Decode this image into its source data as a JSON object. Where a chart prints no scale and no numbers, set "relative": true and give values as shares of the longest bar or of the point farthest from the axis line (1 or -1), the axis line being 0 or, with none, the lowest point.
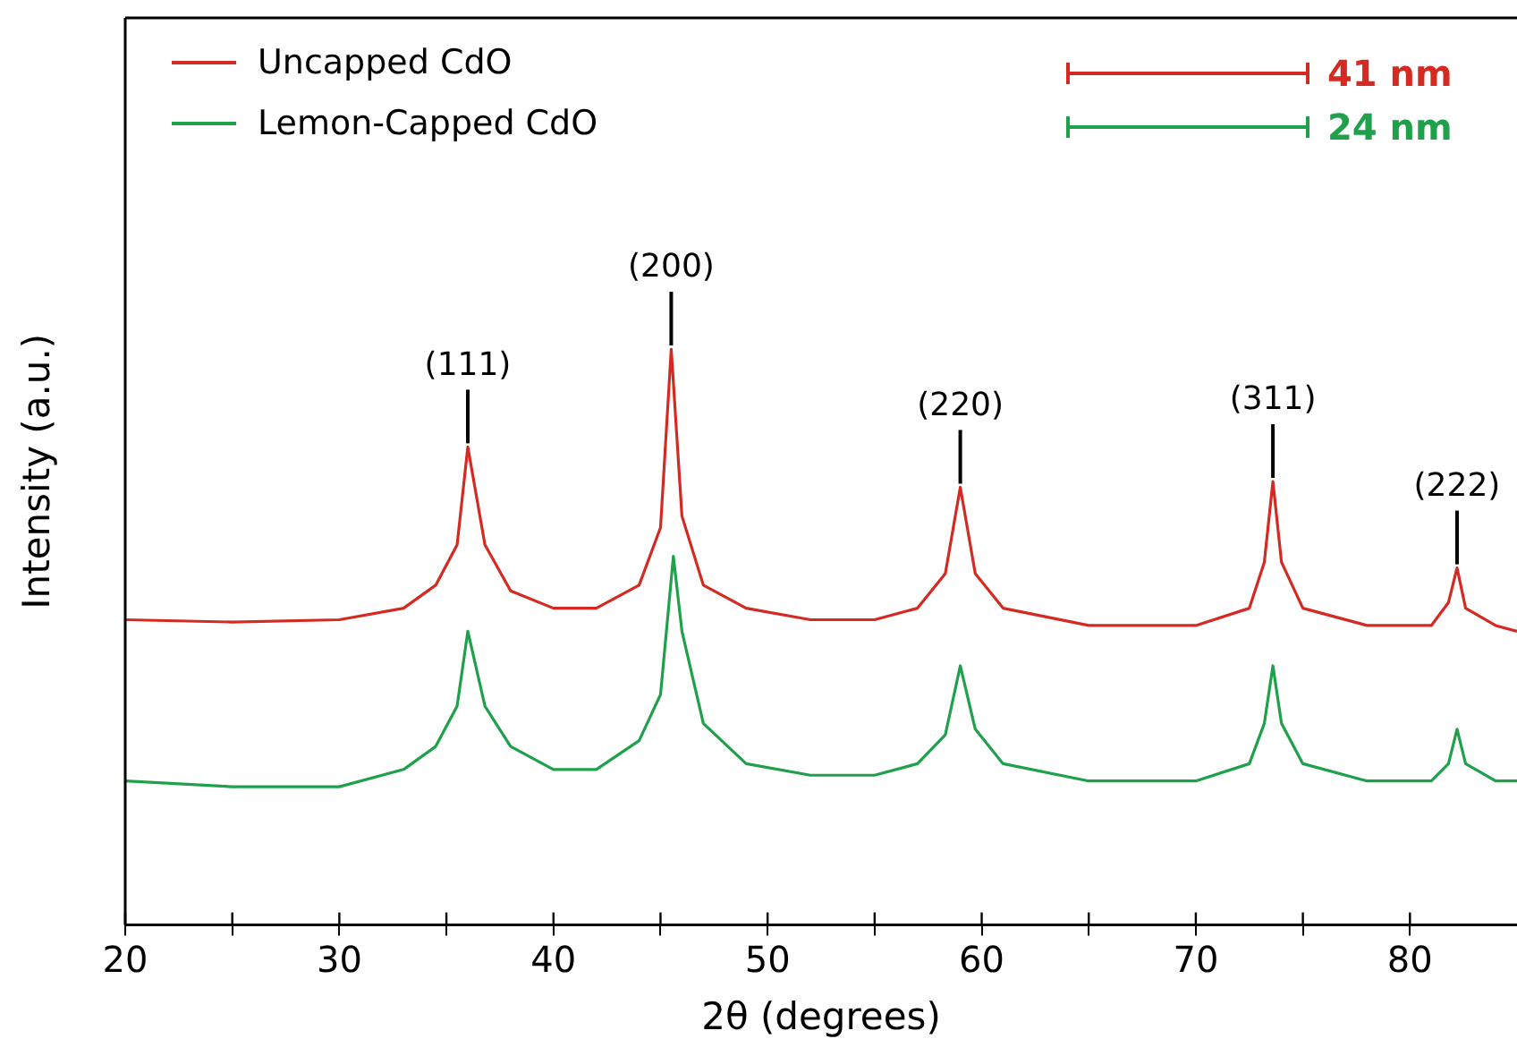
{
  "chart_data": {
    "type": "line",
    "xlabel": "2θ (degrees)",
    "ylabel": "Intensity (a.u.)",
    "relative": true,
    "xlim": [
      20,
      85
    ],
    "xticks": [
      20,
      {
        "value": 25,
        "label": null
      },
      30,
      {
        "value": 35,
        "label": null
      },
      40,
      {
        "value": 45,
        "label": null
      },
      50,
      {
        "value": 55,
        "label": null
      },
      60,
      {
        "value": 65,
        "label": null
      },
      70,
      {
        "value": 75,
        "label": null
      },
      80
    ],
    "grid": false,
    "legend": "top left",
    "marker": "none",
    "line_style": "solid",
    "series": [
      {
        "name": "Uncapped CdO",
        "color": "#d42a22",
        "x": [
          20,
          25,
          30,
          33,
          34.5,
          35.5,
          36,
          36.8,
          38,
          40,
          42,
          44,
          45,
          45.5,
          46,
          47,
          49,
          52,
          55,
          57,
          58.3,
          59,
          59.7,
          61,
          65,
          70,
          72.5,
          73.2,
          73.6,
          74,
          75,
          78,
          81,
          81.8,
          82.2,
          82.6,
          84,
          85
        ],
        "values": [
          0.53,
          0.526,
          0.53,
          0.55,
          0.59,
          0.66,
          0.83,
          0.66,
          0.58,
          0.55,
          0.55,
          0.59,
          0.69,
          1.0,
          0.71,
          0.59,
          0.55,
          0.53,
          0.53,
          0.55,
          0.61,
          0.76,
          0.61,
          0.55,
          0.52,
          0.52,
          0.55,
          0.63,
          0.77,
          0.63,
          0.55,
          0.52,
          0.52,
          0.56,
          0.62,
          0.55,
          0.52,
          0.51
        ]
      },
      {
        "name": "Lemon-Capped CdO",
        "color": "#1fa04a",
        "x": [
          20,
          25,
          30,
          33,
          34.5,
          35.5,
          36,
          36.8,
          38,
          40,
          42,
          44,
          45,
          45.6,
          46,
          47,
          49,
          52,
          55,
          57,
          58.3,
          59,
          59.7,
          61,
          65,
          70,
          72.5,
          73.2,
          73.6,
          74,
          75,
          78,
          81,
          81.8,
          82.2,
          82.6,
          84,
          85
        ],
        "values": [
          0.25,
          0.24,
          0.24,
          0.27,
          0.31,
          0.38,
          0.51,
          0.38,
          0.31,
          0.27,
          0.27,
          0.32,
          0.4,
          0.64,
          0.51,
          0.35,
          0.28,
          0.26,
          0.26,
          0.28,
          0.33,
          0.45,
          0.34,
          0.28,
          0.25,
          0.25,
          0.28,
          0.35,
          0.45,
          0.35,
          0.28,
          0.25,
          0.25,
          0.28,
          0.34,
          0.28,
          0.25,
          0.25
        ]
      }
    ],
    "annotations": [
      {
        "text": "(111)",
        "x": 36,
        "y": 0.83
      },
      {
        "text": "(200)",
        "x": 45.5,
        "y": 1.0
      },
      {
        "text": "(220)",
        "x": 59,
        "y": 0.76
      },
      {
        "text": "(311)",
        "x": 73.6,
        "y": 0.77
      },
      {
        "text": "(222)",
        "x": 82.2,
        "y": 0.62
      },
      "41 nm",
      "24 nm"
    ]
  }
}
